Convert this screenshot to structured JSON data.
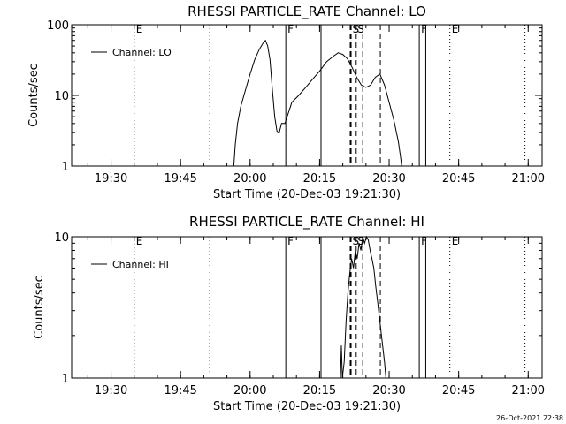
{
  "colors": {
    "background": "#ffffff",
    "foreground": "#000000",
    "line": "#000000"
  },
  "footer": {
    "timestamp": "26-Oct-2021 22:38"
  },
  "chart_data": [
    {
      "type": "line",
      "title": "RHESSI PARTICLE_RATE Channel: LO",
      "xlabel": "Start Time (20-Dec-03 19:21:30)",
      "ylabel": "Counts/sec",
      "x_unit": "minutes since 19:21:30",
      "xlim": [
        0,
        101.5
      ],
      "ylim": [
        1,
        100
      ],
      "yscale": "log",
      "x_ticks": [
        {
          "value": 8.5,
          "label": "19:30"
        },
        {
          "value": 23.5,
          "label": "19:45"
        },
        {
          "value": 38.5,
          "label": "20:00"
        },
        {
          "value": 53.5,
          "label": "20:15"
        },
        {
          "value": 68.5,
          "label": "20:30"
        },
        {
          "value": 83.5,
          "label": "20:45"
        },
        {
          "value": 98.5,
          "label": "21:00"
        }
      ],
      "y_ticks": [
        {
          "value": 1,
          "label": "1"
        },
        {
          "value": 10,
          "label": "10"
        },
        {
          "value": 100,
          "label": "100"
        }
      ],
      "legend": {
        "placement": "top-left",
        "entries": [
          "Channel: LO"
        ]
      },
      "series": [
        {
          "name": "Channel: LO",
          "points": [
            [
              35.0,
              1
            ],
            [
              35.3,
              2.0
            ],
            [
              35.8,
              4.0
            ],
            [
              36.5,
              7
            ],
            [
              37.5,
              12
            ],
            [
              38.5,
              20
            ],
            [
              39.5,
              32
            ],
            [
              40.5,
              45
            ],
            [
              41.3,
              55
            ],
            [
              41.8,
              60
            ],
            [
              42.3,
              50
            ],
            [
              42.8,
              32
            ],
            [
              43.3,
              12
            ],
            [
              43.8,
              5
            ],
            [
              44.3,
              3.1
            ],
            [
              44.8,
              3.0
            ],
            [
              45.3,
              4.0
            ],
            [
              46.0,
              4.0
            ],
            [
              46.5,
              5
            ],
            [
              47.5,
              8
            ],
            [
              49.0,
              10
            ],
            [
              50.5,
              13
            ],
            [
              52.0,
              17
            ],
            [
              53.5,
              22
            ],
            [
              55.0,
              30
            ],
            [
              56.5,
              36
            ],
            [
              57.5,
              40
            ],
            [
              58.5,
              38
            ],
            [
              59.5,
              33
            ],
            [
              60.5,
              25
            ],
            [
              61.5,
              18
            ],
            [
              62.5,
              14
            ],
            [
              63.5,
              13
            ],
            [
              64.5,
              14
            ],
            [
              65.5,
              18
            ],
            [
              66.5,
              20
            ],
            [
              67.5,
              14
            ],
            [
              68.5,
              8
            ],
            [
              69.5,
              4.5
            ],
            [
              70.5,
              2.2
            ],
            [
              71.0,
              1.3
            ],
            [
              71.2,
              1
            ]
          ]
        }
      ],
      "vertical_lines": [
        {
          "x": 13.5,
          "style": "dotted",
          "label": "E"
        },
        {
          "x": 29.8,
          "style": "dotted",
          "label": ""
        },
        {
          "x": 46.2,
          "style": "solid",
          "label": "F"
        },
        {
          "x": 53.8,
          "style": "solid",
          "label": ""
        },
        {
          "x": 60.2,
          "style": "dashed-thick",
          "label": "S"
        },
        {
          "x": 61.3,
          "style": "dashed-thick",
          "label": "S"
        },
        {
          "x": 62.8,
          "style": "dashed",
          "label": ""
        },
        {
          "x": 66.6,
          "style": "dashed",
          "label": ""
        },
        {
          "x": 75.0,
          "style": "solid",
          "label": "F"
        },
        {
          "x": 76.4,
          "style": "solid",
          "label": ""
        },
        {
          "x": 81.6,
          "style": "dotted",
          "label": "E"
        },
        {
          "x": 97.8,
          "style": "dotted",
          "label": ""
        }
      ]
    },
    {
      "type": "line",
      "title": "RHESSI PARTICLE_RATE Channel: HI",
      "xlabel": "Start Time (20-Dec-03 19:21:30)",
      "ylabel": "Counts/sec",
      "x_unit": "minutes since 19:21:30",
      "xlim": [
        0,
        101.5
      ],
      "ylim": [
        1,
        10
      ],
      "yscale": "log",
      "x_ticks": [
        {
          "value": 8.5,
          "label": "19:30"
        },
        {
          "value": 23.5,
          "label": "19:45"
        },
        {
          "value": 38.5,
          "label": "20:00"
        },
        {
          "value": 53.5,
          "label": "20:15"
        },
        {
          "value": 68.5,
          "label": "20:30"
        },
        {
          "value": 83.5,
          "label": "20:45"
        },
        {
          "value": 98.5,
          "label": "21:00"
        }
      ],
      "y_ticks": [
        {
          "value": 1,
          "label": "1"
        },
        {
          "value": 10,
          "label": "10"
        }
      ],
      "legend": {
        "placement": "top-left",
        "entries": [
          "Channel: HI"
        ]
      },
      "series": [
        {
          "name": "Channel: HI",
          "points": [
            [
              58.0,
              1
            ],
            [
              58.2,
              1.7
            ],
            [
              58.4,
              1
            ],
            [
              58.8,
              1.3
            ],
            [
              59.2,
              2.5
            ],
            [
              59.6,
              4.0
            ],
            [
              60.0,
              5.5
            ],
            [
              60.4,
              7.0
            ],
            [
              60.8,
              6.0
            ],
            [
              61.2,
              8.0
            ],
            [
              61.6,
              7.0
            ],
            [
              62.0,
              9.0
            ],
            [
              62.4,
              8.0
            ],
            [
              62.8,
              10.0
            ],
            [
              63.2,
              9.0
            ],
            [
              63.6,
              10.0
            ],
            [
              64.0,
              9.5
            ],
            [
              64.4,
              8.0
            ],
            [
              64.8,
              7.0
            ],
            [
              65.2,
              6.0
            ],
            [
              65.6,
              4.5
            ],
            [
              66.0,
              3.5
            ],
            [
              66.5,
              2.5
            ],
            [
              67.0,
              1.8
            ],
            [
              67.5,
              1.3
            ],
            [
              67.8,
              1
            ]
          ]
        }
      ],
      "vertical_lines": [
        {
          "x": 13.5,
          "style": "dotted",
          "label": "E"
        },
        {
          "x": 29.8,
          "style": "dotted",
          "label": ""
        },
        {
          "x": 46.2,
          "style": "solid",
          "label": "F"
        },
        {
          "x": 53.8,
          "style": "solid",
          "label": ""
        },
        {
          "x": 60.2,
          "style": "dashed-thick",
          "label": "S"
        },
        {
          "x": 61.3,
          "style": "dashed-thick",
          "label": "S"
        },
        {
          "x": 62.8,
          "style": "dashed",
          "label": ""
        },
        {
          "x": 66.6,
          "style": "dashed",
          "label": ""
        },
        {
          "x": 75.0,
          "style": "solid",
          "label": "F"
        },
        {
          "x": 76.4,
          "style": "solid",
          "label": ""
        },
        {
          "x": 81.6,
          "style": "dotted",
          "label": "E"
        },
        {
          "x": 97.8,
          "style": "dotted",
          "label": ""
        }
      ]
    }
  ]
}
